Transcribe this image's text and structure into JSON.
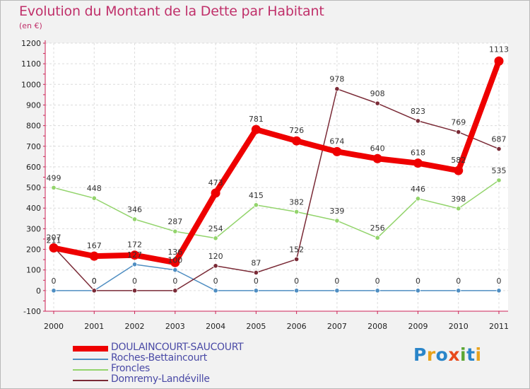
{
  "title": "Evolution du Montant de la Dette par Habitant",
  "subtitle": "(en €)",
  "logo": {
    "text": "Proxiti",
    "letters": [
      {
        "ch": "P",
        "color": "#2a85c9"
      },
      {
        "ch": "r",
        "color": "#e8a21c"
      },
      {
        "ch": "o",
        "color": "#2a85c9"
      },
      {
        "ch": "x",
        "color": "#e84a1c"
      },
      {
        "ch": "i",
        "color": "#5aa632"
      },
      {
        "ch": "t",
        "color": "#2a85c9"
      },
      {
        "ch": "i",
        "color": "#e8a21c"
      }
    ]
  },
  "chart_data": {
    "type": "line",
    "title": "Evolution du Montant de la Dette par Habitant",
    "ylabel": "(en €)",
    "xlabel": "",
    "x": [
      "2000",
      "2001",
      "2002",
      "2003",
      "2004",
      "2005",
      "2006",
      "2007",
      "2008",
      "2009",
      "2010",
      "2011"
    ],
    "ylim": [
      -100,
      1200
    ],
    "yticks": [
      -100,
      0,
      100,
      200,
      300,
      400,
      500,
      600,
      700,
      800,
      900,
      1000,
      1100,
      1200
    ],
    "grid": true,
    "series": [
      {
        "name": "DOULAINCOURT-SAUCOURT",
        "color": "#ee0000",
        "values": [
          207,
          167,
          172,
          136,
          473,
          781,
          726,
          674,
          640,
          618,
          582,
          1113
        ]
      },
      {
        "name": "Roches-Bettaincourt",
        "color": "#4f8ec2",
        "values": [
          0,
          0,
          127,
          100,
          0,
          0,
          0,
          0,
          0,
          0,
          0,
          0
        ]
      },
      {
        "name": "Froncles",
        "color": "#93d46c",
        "values": [
          499,
          448,
          346,
          287,
          254,
          415,
          382,
          339,
          256,
          446,
          398,
          535
        ]
      },
      {
        "name": "Domremy-Landéville",
        "color": "#7a2a36",
        "values": [
          211,
          0,
          0,
          0,
          120,
          87,
          152,
          978,
          908,
          823,
          769,
          687
        ]
      }
    ]
  }
}
